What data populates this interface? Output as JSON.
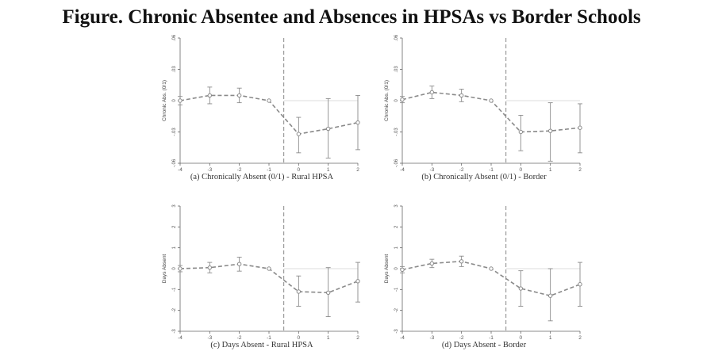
{
  "figure_title": "Figure. Chronic Absentee and Absences in HPSAs vs Border Schools",
  "colors": {
    "line": "#8a8a8a",
    "axis": "#666666",
    "zero_line": "#dddddd",
    "vline": "#888888"
  },
  "chart_data": [
    {
      "type": "line",
      "caption": "(a) Chronically Absent (0/1) - Rural HPSA",
      "ylabel": "Chronic Abs. (0/1)",
      "ylim": [
        -0.06,
        0.06
      ],
      "yticks": [
        -0.06,
        -0.03,
        0,
        0.03,
        0.06
      ],
      "ytick_labels": [
        "-.06",
        "-.03",
        "0",
        ".03",
        ".06"
      ],
      "xlim": [
        -4,
        2
      ],
      "x": [
        -4,
        -3,
        -2,
        -1,
        0,
        1,
        2
      ],
      "x_tick_labels": [
        "-4",
        "-3",
        "-2",
        "-1",
        "0",
        "1",
        "2"
      ],
      "event_line_x": -0.5,
      "reference_y": 0,
      "series": [
        {
          "values": [
            0.0,
            0.005,
            0.005,
            0.0,
            -0.032,
            -0.027,
            -0.021
          ],
          "ci_low": [
            -0.004,
            -0.003,
            -0.002,
            0.0,
            -0.05,
            -0.055,
            -0.047
          ],
          "ci_high": [
            0.004,
            0.013,
            0.012,
            0.0,
            -0.016,
            0.002,
            0.005
          ]
        }
      ]
    },
    {
      "type": "line",
      "caption": "(b) Chronically Absent (0/1) - Border",
      "ylabel": "Chronic Abs. (0/1)",
      "ylim": [
        -0.06,
        0.06
      ],
      "yticks": [
        -0.06,
        -0.03,
        0,
        0.03,
        0.06
      ],
      "ytick_labels": [
        "-.06",
        "-.03",
        "0",
        ".03",
        ".06"
      ],
      "xlim": [
        -4,
        2
      ],
      "x": [
        -4,
        -3,
        -2,
        -1,
        0,
        1,
        2
      ],
      "x_tick_labels": [
        "-4",
        "-3",
        "-2",
        "-1",
        "0",
        "1",
        "2"
      ],
      "event_line_x": -0.5,
      "reference_y": 0,
      "series": [
        {
          "values": [
            0.001,
            0.008,
            0.005,
            0.0,
            -0.03,
            -0.029,
            -0.026
          ],
          "ci_low": [
            -0.002,
            0.002,
            -0.001,
            0.0,
            -0.048,
            -0.058,
            -0.05
          ],
          "ci_high": [
            0.004,
            0.014,
            0.011,
            0.0,
            -0.014,
            -0.002,
            -0.003
          ]
        }
      ]
    },
    {
      "type": "line",
      "caption": "(c) Days Absent - Rural HPSA",
      "ylabel": "Days Absent",
      "ylim": [
        -3,
        3
      ],
      "yticks": [
        -3,
        -2,
        -1,
        0,
        1,
        2,
        3
      ],
      "ytick_labels": [
        "-3",
        "-2",
        "-1",
        "0",
        "1",
        "2",
        "3"
      ],
      "xlim": [
        -4,
        2
      ],
      "x": [
        -4,
        -3,
        -2,
        -1,
        0,
        1,
        2
      ],
      "x_tick_labels": [
        "-4",
        "-3",
        "-2",
        "-1",
        "0",
        "1",
        "2"
      ],
      "event_line_x": -0.5,
      "reference_y": 0,
      "series": [
        {
          "values": [
            0.0,
            0.05,
            0.22,
            0.0,
            -1.1,
            -1.15,
            -0.6
          ],
          "ci_low": [
            -0.15,
            -0.2,
            -0.12,
            0.0,
            -1.8,
            -2.3,
            -1.6
          ],
          "ci_high": [
            0.15,
            0.3,
            0.55,
            0.0,
            -0.35,
            0.05,
            0.3
          ]
        }
      ]
    },
    {
      "type": "line",
      "caption": "(d) Days Absent - Border",
      "ylabel": "Days Absent",
      "ylim": [
        -3,
        3
      ],
      "yticks": [
        -3,
        -2,
        -1,
        0,
        1,
        2,
        3
      ],
      "ytick_labels": [
        "-3",
        "-2",
        "-1",
        "0",
        "1",
        "2",
        "3"
      ],
      "xlim": [
        -4,
        2
      ],
      "x": [
        -4,
        -3,
        -2,
        -1,
        0,
        1,
        2
      ],
      "x_tick_labels": [
        "-4",
        "-3",
        "-2",
        "-1",
        "0",
        "1",
        "2"
      ],
      "event_line_x": -0.5,
      "reference_y": 0,
      "series": [
        {
          "values": [
            -0.05,
            0.25,
            0.35,
            0.0,
            -0.95,
            -1.3,
            -0.75
          ],
          "ci_low": [
            -0.2,
            0.05,
            0.1,
            0.0,
            -1.8,
            -2.5,
            -1.8
          ],
          "ci_high": [
            0.1,
            0.45,
            0.6,
            0.0,
            -0.1,
            0.0,
            0.3
          ]
        }
      ]
    }
  ]
}
